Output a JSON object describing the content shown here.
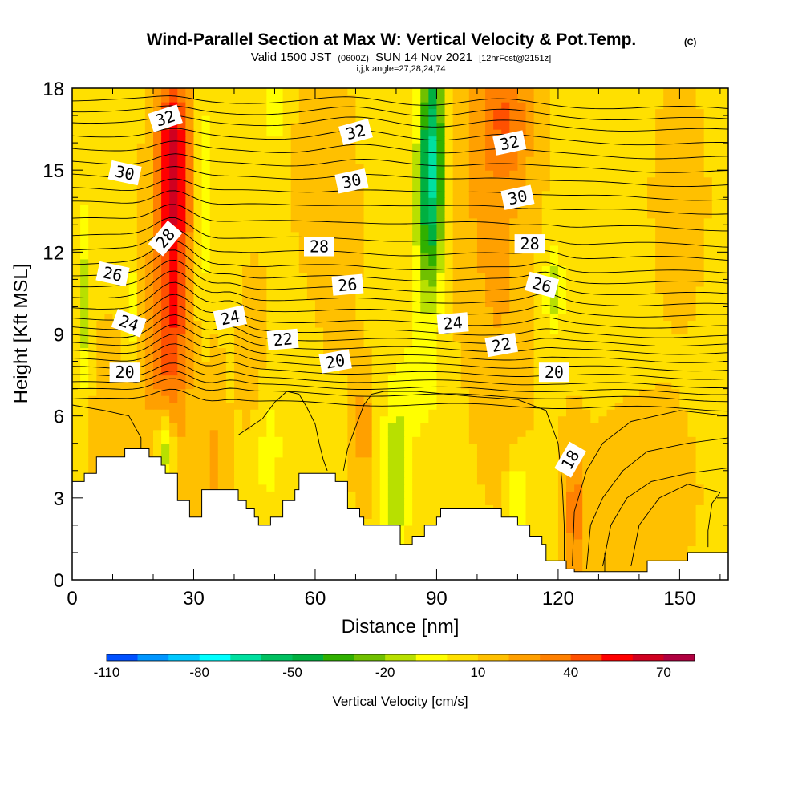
{
  "chart_data": {
    "type": "heatmap",
    "title": "Wind-Parallel Section at Max W: Vertical Velocity & Pot.Temp.",
    "copyright": "(C)",
    "subtitle_main": "Valid 1500 JST",
    "subtitle_utc": "(0600Z)",
    "subtitle_date": "SUN 14 Nov 2021",
    "subtitle_fcst": "[12hrFcst@2151z]",
    "subtitle_ijk": "i,j,k,angle=27,28,24,74",
    "xlabel": "Distance [nm]",
    "ylabel": "Height [Kft MSL]",
    "xlim": [
      0,
      162
    ],
    "ylim": [
      0,
      18
    ],
    "x_ticks": [
      0,
      30,
      60,
      90,
      120,
      150
    ],
    "y_ticks": [
      0,
      3,
      6,
      9,
      12,
      15,
      18
    ],
    "x_ticklabels": [
      "0",
      "30",
      "60",
      "90",
      "120",
      "150"
    ],
    "y_ticklabels": [
      "0",
      "3",
      "6",
      "9",
      "12",
      "15",
      "18"
    ],
    "colorbar": {
      "label": "Vertical Velocity [cm/s]",
      "min": -110,
      "max": 80,
      "step": 10,
      "tick_values": [
        -110,
        -80,
        -50,
        -20,
        10,
        40,
        70
      ],
      "tick_labels": [
        "-110",
        "-80",
        "-50",
        "-20",
        "10",
        "40",
        "70"
      ],
      "colors": [
        "#0000ff",
        "#0050ff",
        "#0096ff",
        "#00c8ff",
        "#00ffff",
        "#00e0a0",
        "#00c060",
        "#00b040",
        "#30b000",
        "#70c000",
        "#b8e000",
        "#ffff00",
        "#ffe000",
        "#ffc000",
        "#ffa000",
        "#ff8000",
        "#ff5000",
        "#ff0000",
        "#d00020",
        "#b00040",
        "#900060",
        "#700080"
      ]
    },
    "vertical_velocity_features": [
      {
        "x": 25,
        "y": 11.5,
        "value": 42,
        "sx": 3.2,
        "sy": 4.5
      },
      {
        "x": 25,
        "y": 16,
        "value": 30,
        "sx": 3.0,
        "sy": 2.2
      },
      {
        "x": 20,
        "y": 8.5,
        "value": 15,
        "sx": 3.5,
        "sy": 2.2
      },
      {
        "x": 107,
        "y": 17,
        "value": 28,
        "sx": 5.0,
        "sy": 1.8
      },
      {
        "x": 106,
        "y": 11,
        "value": 12,
        "sx": 5.0,
        "sy": 4.5
      },
      {
        "x": 124,
        "y": 2.5,
        "value": 26,
        "sx": 2.0,
        "sy": 1.8
      },
      {
        "x": 97,
        "y": 14,
        "value": 8,
        "sx": 5.0,
        "sy": 4.0
      },
      {
        "x": 72,
        "y": 5.5,
        "value": 18,
        "sx": 1.8,
        "sy": 1.6
      },
      {
        "x": 35,
        "y": 4.0,
        "value": 14,
        "sx": 2.2,
        "sy": 2.5
      },
      {
        "x": 45,
        "y": 7.5,
        "value": 10,
        "sx": 2.5,
        "sy": 2.5
      },
      {
        "x": 140,
        "y": 3.0,
        "value": 6,
        "sx": 10.0,
        "sy": 2.5
      },
      {
        "x": 8,
        "y": 5.5,
        "value": 8,
        "sx": 4.0,
        "sy": 2.5
      },
      {
        "x": 66,
        "y": 13,
        "value": 5,
        "sx": 4.0,
        "sy": 4.0
      },
      {
        "x": 59,
        "y": 15,
        "value": 4,
        "sx": 4.0,
        "sy": 3.0
      },
      {
        "x": 150,
        "y": 14,
        "value": 4,
        "sx": 6.0,
        "sy": 4.0
      },
      {
        "x": 89,
        "y": 16,
        "value": -58,
        "sx": 2.2,
        "sy": 2.8
      },
      {
        "x": 88,
        "y": 13,
        "value": -30,
        "sx": 2.5,
        "sy": 2.5
      },
      {
        "x": 32,
        "y": 14,
        "value": -22,
        "sx": 1.2,
        "sy": 3.0
      },
      {
        "x": 3,
        "y": 10,
        "value": -24,
        "sx": 1.3,
        "sy": 2.5
      },
      {
        "x": 15,
        "y": 9.8,
        "value": -20,
        "sx": 1.3,
        "sy": 1.3
      },
      {
        "x": 23,
        "y": 4.8,
        "value": -35,
        "sx": 1.6,
        "sy": 1.0
      },
      {
        "x": 80,
        "y": 3.6,
        "value": -28,
        "sx": 2.2,
        "sy": 1.8
      },
      {
        "x": 50,
        "y": 17.3,
        "value": -20,
        "sx": 1.5,
        "sy": 1.0
      },
      {
        "x": 119,
        "y": 10.6,
        "value": -28,
        "sx": 1.6,
        "sy": 1.0
      },
      {
        "x": 110,
        "y": 3.0,
        "value": -22,
        "sx": 1.5,
        "sy": 1.0
      },
      {
        "x": 48,
        "y": 5.0,
        "value": -14,
        "sx": 3.0,
        "sy": 2.0
      },
      {
        "x": 85,
        "y": 7.0,
        "value": -10,
        "sx": 6.0,
        "sy": 2.0
      }
    ],
    "potential_temperature_contour_labels": [
      {
        "label": "32",
        "x": 23,
        "y": 16.9,
        "angle": -18
      },
      {
        "label": "32",
        "x": 70,
        "y": 16.4,
        "angle": -15
      },
      {
        "label": "32",
        "x": 108,
        "y": 16.0,
        "angle": -12
      },
      {
        "label": "30",
        "x": 13,
        "y": 14.9,
        "angle": 12
      },
      {
        "label": "30",
        "x": 69,
        "y": 14.6,
        "angle": -12
      },
      {
        "label": "30",
        "x": 110,
        "y": 14.0,
        "angle": -12
      },
      {
        "label": "28",
        "x": 23,
        "y": 12.5,
        "angle": -50
      },
      {
        "label": "28",
        "x": 61,
        "y": 12.2,
        "angle": 0
      },
      {
        "label": "28",
        "x": 113,
        "y": 12.3,
        "angle": 0
      },
      {
        "label": "26",
        "x": 10,
        "y": 11.2,
        "angle": 12
      },
      {
        "label": "26",
        "x": 68,
        "y": 10.8,
        "angle": -5
      },
      {
        "label": "26",
        "x": 116,
        "y": 10.8,
        "angle": 15
      },
      {
        "label": "24",
        "x": 14,
        "y": 9.4,
        "angle": 20
      },
      {
        "label": "24",
        "x": 39,
        "y": 9.6,
        "angle": -12
      },
      {
        "label": "24",
        "x": 94,
        "y": 9.4,
        "angle": -5
      },
      {
        "label": "22",
        "x": 52,
        "y": 8.8,
        "angle": -5
      },
      {
        "label": "22",
        "x": 106,
        "y": 8.6,
        "angle": -10
      },
      {
        "label": "20",
        "x": 13,
        "y": 7.6,
        "angle": 0
      },
      {
        "label": "20",
        "x": 65,
        "y": 8.0,
        "angle": -10
      },
      {
        "label": "20",
        "x": 119,
        "y": 7.6,
        "angle": 0
      },
      {
        "label": "18",
        "x": 123,
        "y": 4.4,
        "angle": -60
      }
    ],
    "potential_temperature_levels": [
      {
        "value": 33.0,
        "y": 17.6
      },
      {
        "value": 32.5,
        "y": 17.2
      },
      {
        "value": 32.0,
        "y": 16.8
      },
      {
        "value": 31.5,
        "y": 16.3
      },
      {
        "value": 31.0,
        "y": 15.8
      },
      {
        "value": 30.5,
        "y": 15.3
      },
      {
        "value": 30.0,
        "y": 14.8
      },
      {
        "value": 29.5,
        "y": 14.3
      },
      {
        "value": 29.0,
        "y": 13.8
      },
      {
        "value": 28.5,
        "y": 13.2
      },
      {
        "value": 28.0,
        "y": 12.6
      },
      {
        "value": 27.5,
        "y": 12.1
      },
      {
        "value": 27.0,
        "y": 11.6
      },
      {
        "value": 26.5,
        "y": 11.2
      },
      {
        "value": 26.0,
        "y": 10.8
      },
      {
        "value": 25.5,
        "y": 10.4
      },
      {
        "value": 25.0,
        "y": 10.0
      },
      {
        "value": 24.5,
        "y": 9.6
      },
      {
        "value": 24.0,
        "y": 9.25
      },
      {
        "value": 23.5,
        "y": 8.95
      },
      {
        "value": 23.0,
        "y": 8.65
      },
      {
        "value": 22.5,
        "y": 8.35
      },
      {
        "value": 22.0,
        "y": 8.05
      },
      {
        "value": 21.5,
        "y": 7.75
      },
      {
        "value": 21.0,
        "y": 7.45
      },
      {
        "value": 20.5,
        "y": 7.2
      },
      {
        "value": 20.0,
        "y": 6.95
      },
      {
        "value": 19.5,
        "y": 6.6
      }
    ],
    "lower_contours": [
      [
        [
          0,
          6.4
        ],
        [
          8,
          6.2
        ],
        [
          14,
          6.0
        ],
        [
          17,
          5.2
        ],
        [
          17,
          4.8
        ]
      ],
      [
        [
          41,
          5.3
        ],
        [
          44,
          5.6
        ],
        [
          47,
          5.9
        ],
        [
          50,
          6.5
        ],
        [
          53,
          6.9
        ],
        [
          56,
          6.8
        ],
        [
          58,
          6.3
        ],
        [
          60,
          5.7
        ],
        [
          61,
          5.0
        ],
        [
          62,
          4.4
        ],
        [
          63,
          4.0
        ]
      ],
      [
        [
          67,
          4.0
        ],
        [
          68,
          4.8
        ],
        [
          70,
          5.6
        ],
        [
          72,
          6.4
        ],
        [
          74,
          6.8
        ],
        [
          77,
          6.9
        ],
        [
          85,
          6.9
        ],
        [
          100,
          6.7
        ],
        [
          110,
          6.6
        ],
        [
          117,
          6.2
        ],
        [
          120,
          5.0
        ],
        [
          121,
          3.5
        ],
        [
          121.5,
          2.0
        ],
        [
          121.5,
          0.5
        ]
      ],
      [
        [
          162,
          6.0
        ],
        [
          150,
          6.2
        ],
        [
          138,
          5.8
        ],
        [
          131,
          5.0
        ],
        [
          127,
          4.0
        ],
        [
          124,
          2.5
        ],
        [
          123.5,
          0.5
        ]
      ],
      [
        [
          162,
          5.2
        ],
        [
          152,
          5.0
        ],
        [
          142,
          4.7
        ],
        [
          136,
          4.0
        ],
        [
          131,
          3.0
        ],
        [
          128,
          2.0
        ],
        [
          127,
          0.4
        ]
      ],
      [
        [
          162,
          4.1
        ],
        [
          152,
          3.9
        ],
        [
          143,
          3.6
        ],
        [
          137,
          3.0
        ],
        [
          133,
          2.0
        ],
        [
          131,
          0.5
        ]
      ],
      [
        [
          160,
          3.2
        ],
        [
          152,
          3.5
        ],
        [
          145,
          3.0
        ],
        [
          140,
          2.0
        ],
        [
          138,
          0.5
        ]
      ],
      [
        [
          160,
          3.2
        ],
        [
          158,
          2.8
        ],
        [
          157,
          1.8
        ],
        [
          157,
          1.2
        ]
      ],
      [
        [
          131.5,
          0.3
        ],
        [
          131.5,
          1.0
        ]
      ]
    ],
    "terrain_profile": [
      {
        "x": 0,
        "y": 3.6
      },
      {
        "x": 3,
        "y": 3.9
      },
      {
        "x": 6,
        "y": 4.5
      },
      {
        "x": 13,
        "y": 4.8
      },
      {
        "x": 19,
        "y": 4.5
      },
      {
        "x": 22,
        "y": 4.2
      },
      {
        "x": 23,
        "y": 3.9
      },
      {
        "x": 26,
        "y": 2.9
      },
      {
        "x": 29,
        "y": 2.3
      },
      {
        "x": 32,
        "y": 3.3
      },
      {
        "x": 41,
        "y": 2.9
      },
      {
        "x": 43,
        "y": 2.6
      },
      {
        "x": 45,
        "y": 2.3
      },
      {
        "x": 46,
        "y": 2.0
      },
      {
        "x": 49,
        "y": 2.3
      },
      {
        "x": 52,
        "y": 2.9
      },
      {
        "x": 55,
        "y": 3.3
      },
      {
        "x": 56,
        "y": 3.9
      },
      {
        "x": 65,
        "y": 3.6
      },
      {
        "x": 68,
        "y": 2.6
      },
      {
        "x": 71,
        "y": 2.3
      },
      {
        "x": 72,
        "y": 2.0
      },
      {
        "x": 81,
        "y": 1.3
      },
      {
        "x": 84,
        "y": 1.6
      },
      {
        "x": 87,
        "y": 2.0
      },
      {
        "x": 90,
        "y": 2.3
      },
      {
        "x": 91,
        "y": 2.6
      },
      {
        "x": 106,
        "y": 2.3
      },
      {
        "x": 110,
        "y": 2.0
      },
      {
        "x": 113,
        "y": 1.6
      },
      {
        "x": 116,
        "y": 1.3
      },
      {
        "x": 117,
        "y": 0.7
      },
      {
        "x": 122,
        "y": 0.4
      },
      {
        "x": 124,
        "y": 0.3
      },
      {
        "x": 140,
        "y": 0.3
      },
      {
        "x": 142,
        "y": 0.7
      },
      {
        "x": 152,
        "y": 0.7
      },
      {
        "x": 152,
        "y": 1.0
      },
      {
        "x": 162,
        "y": 1.0
      }
    ]
  }
}
